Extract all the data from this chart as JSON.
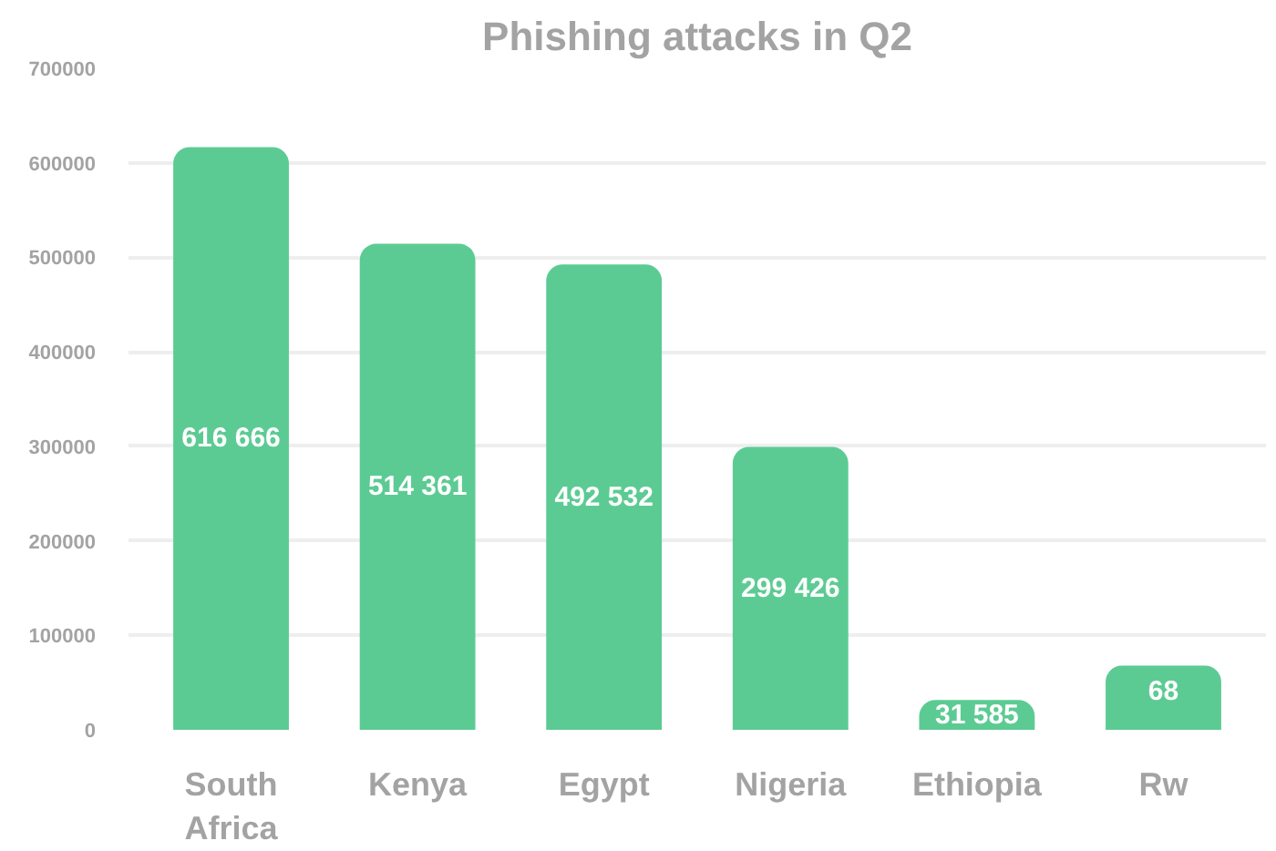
{
  "chart_data": {
    "type": "bar",
    "title": "Phishing attacks in Q2",
    "categories": [
      "South Africa",
      "Kenya",
      "Egypt",
      "Nigeria",
      "Ethiopia",
      "Rw"
    ],
    "values": [
      616666,
      514361,
      492532,
      299426,
      31585,
      68000
    ],
    "value_labels": [
      "616 666",
      "514 361",
      "492 532",
      "299 426",
      "31 585",
      null
    ],
    "annotations": [
      {
        "text": "68",
        "x": "Rw",
        "y": 68000
      }
    ],
    "color": "#5ccb93",
    "ylim": [
      0,
      700000
    ],
    "yticks": [
      0,
      100000,
      200000,
      300000,
      400000,
      500000,
      600000,
      700000
    ],
    "grid": "y"
  }
}
